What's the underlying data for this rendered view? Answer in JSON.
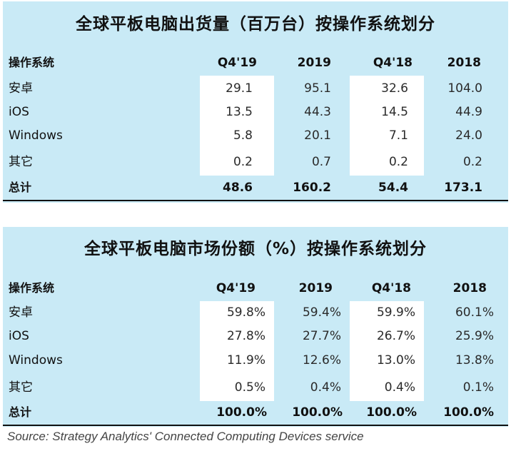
{
  "shipments": {
    "title": "全球平板电脑出货量（百万台）按操作系统划分",
    "header": [
      "操作系统",
      "Q4'19",
      "2019",
      "Q4'18",
      "2018"
    ],
    "rows": [
      [
        "安卓",
        "29.1",
        "95.1",
        "32.6",
        "104.0"
      ],
      [
        "iOS",
        "13.5",
        "44.3",
        "14.5",
        "44.9"
      ],
      [
        "Windows",
        "5.8",
        "20.1",
        "7.1",
        "24.0"
      ],
      [
        "其它",
        "0.2",
        "0.7",
        "0.2",
        "0.2"
      ]
    ],
    "total": [
      "总计",
      "48.6",
      "160.2",
      "54.4",
      "173.1"
    ]
  },
  "share": {
    "title": "全球平板电脑市场份额（%）按操作系统划分",
    "header": [
      "操作系统",
      "Q4'19",
      "2019",
      "Q4'18",
      "2018"
    ],
    "rows": [
      [
        "安卓",
        "59.8%",
        "59.4%",
        "59.9%",
        "60.1%"
      ],
      [
        "iOS",
        "27.8%",
        "27.7%",
        "26.7%",
        "25.9%"
      ],
      [
        "Windows",
        "11.9%",
        "12.6%",
        "13.0%",
        "13.8%"
      ],
      [
        "其它",
        "0.5%",
        "0.4%",
        "0.4%",
        "0.1%"
      ]
    ],
    "total": [
      "总计",
      "100.0%",
      "100.0%",
      "100.0%",
      "100.0%"
    ]
  },
  "source": "Source: Strategy Analytics' Connected Computing Devices service"
}
